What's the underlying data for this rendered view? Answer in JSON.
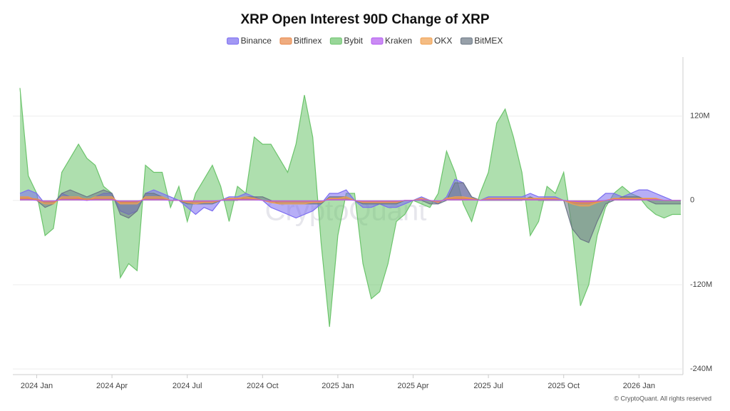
{
  "chart_data": {
    "type": "area",
    "title": "XRP Open Interest 90D Change of XRP",
    "watermark": "CryptoQuant",
    "credit": "© CryptoQuant. All rights reserved",
    "categories": [
      null,
      null,
      "2024 Jan",
      null,
      null,
      null,
      null,
      null,
      null,
      null,
      null,
      "2024 Apr",
      null,
      null,
      null,
      null,
      null,
      null,
      null,
      null,
      "2024 Jul",
      null,
      null,
      null,
      null,
      null,
      null,
      null,
      null,
      "2024 Oct",
      null,
      null,
      null,
      null,
      null,
      null,
      null,
      null,
      "2025 Jan",
      null,
      null,
      null,
      null,
      null,
      null,
      null,
      null,
      "2025 Apr",
      null,
      null,
      null,
      null,
      null,
      null,
      null,
      null,
      "2025 Jul",
      null,
      null,
      null,
      null,
      null,
      null,
      null,
      null,
      "2025 Oct",
      null,
      null,
      null,
      null,
      null,
      null,
      null,
      null,
      "2026 Jan",
      null,
      null,
      null,
      null,
      null
    ],
    "ylim": [
      -248000000.0,
      204000000.0
    ],
    "yticks": [
      {
        "value": 120000000.0,
        "label": "120M"
      },
      0,
      {
        "value": -120000000.0,
        "label": "-120M"
      },
      {
        "value": -240000000.0,
        "label": "-240M"
      }
    ],
    "grid": true,
    "legend": "top",
    "series": [
      {
        "name": "Bybit",
        "color": "#6cc46c",
        "values": [
          160000000.0,
          35000000.0,
          10000000.0,
          -50000000.0,
          -40000000.0,
          40000000.0,
          60000000.0,
          80000000.0,
          60000000.0,
          50000000.0,
          20000000.0,
          10000000.0,
          -110000000.0,
          -90000000.0,
          -100000000.0,
          50000000.0,
          40000000.0,
          40000000.0,
          -10000000.0,
          20000000.0,
          -30000000.0,
          10000000.0,
          30000000.0,
          50000000.0,
          20000000.0,
          -30000000.0,
          20000000.0,
          10000000.0,
          90000000.0,
          80000000.0,
          80000000.0,
          60000000.0,
          40000000.0,
          80000000.0,
          150000000.0,
          90000000.0,
          -60000000.0,
          -180000000.0,
          -50000000.0,
          10000000.0,
          10000000.0,
          -90000000.0,
          -140000000.0,
          -130000000.0,
          -90000000.0,
          -30000000.0,
          -20000000.0,
          0,
          -5000000.0,
          -10000000.0,
          10000000.0,
          70000000.0,
          40000000.0,
          -5000000.0,
          -30000000.0,
          10000000.0,
          40000000.0,
          110000000.0,
          130000000.0,
          90000000.0,
          40000000.0,
          -50000000.0,
          -30000000.0,
          20000000.0,
          10000000.0,
          40000000.0,
          -40000000.0,
          -150000000.0,
          -120000000.0,
          -50000000.0,
          -10000000.0,
          10000000.0,
          20000000.0,
          10000000.0,
          5000000.0,
          -10000000.0,
          -20000000.0,
          -25000000.0,
          -20000000.0,
          -20000000.0
        ]
      },
      {
        "name": "Binance",
        "color": "#7b6cf0",
        "values": [
          10000000.0,
          15000000.0,
          10000000.0,
          -5000000.0,
          -5000000.0,
          10000000.0,
          5000000.0,
          5000000.0,
          0,
          5000000.0,
          10000000.0,
          10000000.0,
          -15000000.0,
          -20000000.0,
          -15000000.0,
          10000000.0,
          15000000.0,
          10000000.0,
          5000000.0,
          0,
          -10000000.0,
          -20000000.0,
          -10000000.0,
          -15000000.0,
          0,
          5000000.0,
          5000000.0,
          10000000.0,
          5000000.0,
          0,
          -10000000.0,
          -15000000.0,
          -20000000.0,
          -25000000.0,
          -20000000.0,
          -15000000.0,
          -5000000.0,
          10000000.0,
          10000000.0,
          15000000.0,
          0,
          -10000000.0,
          -10000000.0,
          -5000000.0,
          -10000000.0,
          -10000000.0,
          -5000000.0,
          0,
          5000000.0,
          0,
          -5000000.0,
          5000000.0,
          30000000.0,
          25000000.0,
          5000000.0,
          0,
          5000000.0,
          5000000.0,
          5000000.0,
          5000000.0,
          5000000.0,
          10000000.0,
          5000000.0,
          5000000.0,
          5000000.0,
          0,
          -5000000.0,
          -5000000.0,
          -5000000.0,
          0,
          10000000.0,
          10000000.0,
          5000000.0,
          10000000.0,
          15000000.0,
          15000000.0,
          10000000.0,
          5000000.0,
          0,
          0
        ]
      },
      {
        "name": "BitMEX",
        "color": "#6b7785",
        "values": [
          5000000.0,
          5000000.0,
          0,
          -10000000.0,
          -5000000.0,
          10000000.0,
          15000000.0,
          10000000.0,
          5000000.0,
          10000000.0,
          15000000.0,
          10000000.0,
          -20000000.0,
          -25000000.0,
          -15000000.0,
          10000000.0,
          10000000.0,
          5000000.0,
          0,
          0,
          -5000000.0,
          -5000000.0,
          -5000000.0,
          -5000000.0,
          0,
          0,
          0,
          5000000.0,
          5000000.0,
          5000000.0,
          0,
          -5000000.0,
          -5000000.0,
          -5000000.0,
          -5000000.0,
          -5000000.0,
          -5000000.0,
          5000000.0,
          5000000.0,
          5000000.0,
          0,
          -5000000.0,
          -5000000.0,
          -5000000.0,
          -5000000.0,
          -5000000.0,
          0,
          0,
          0,
          -5000000.0,
          -5000000.0,
          0,
          25000000.0,
          25000000.0,
          5000000.0,
          0,
          0,
          0,
          0,
          0,
          0,
          5000000.0,
          0,
          0,
          0,
          0,
          -40000000.0,
          -55000000.0,
          -60000000.0,
          -30000000.0,
          -5000000.0,
          0,
          5000000.0,
          5000000.0,
          5000000.0,
          0,
          -5000000.0,
          -5000000.0,
          -5000000.0,
          -5000000.0
        ]
      },
      {
        "name": "OKX",
        "color": "#f0a050",
        "values": [
          5000000.0,
          5000000.0,
          0,
          -5000000.0,
          -5000000.0,
          5000000.0,
          5000000.0,
          5000000.0,
          0,
          5000000.0,
          5000000.0,
          5000000.0,
          -5000000.0,
          -5000000.0,
          -5000000.0,
          5000000.0,
          5000000.0,
          5000000.0,
          0,
          0,
          -3000000.0,
          -5000000.0,
          -3000000.0,
          -3000000.0,
          0,
          3000000.0,
          3000000.0,
          5000000.0,
          3000000.0,
          0,
          -3000000.0,
          -5000000.0,
          -5000000.0,
          -5000000.0,
          -5000000.0,
          -3000000.0,
          -3000000.0,
          3000000.0,
          3000000.0,
          5000000.0,
          0,
          -3000000.0,
          -3000000.0,
          -3000000.0,
          -3000000.0,
          -3000000.0,
          0,
          0,
          3000000.0,
          0,
          -3000000.0,
          3000000.0,
          5000000.0,
          5000000.0,
          3000000.0,
          0,
          3000000.0,
          3000000.0,
          3000000.0,
          3000000.0,
          3000000.0,
          3000000.0,
          3000000.0,
          3000000.0,
          3000000.0,
          0,
          -5000000.0,
          -8000000.0,
          -8000000.0,
          -3000000.0,
          0,
          3000000.0,
          3000000.0,
          3000000.0,
          3000000.0,
          3000000.0,
          3000000.0,
          0,
          0,
          0
        ]
      },
      {
        "name": "Bitfinex",
        "color": "#e8894a",
        "values": [
          3000000.0,
          3000000.0,
          2000000.0,
          -2000000.0,
          -2000000.0,
          2000000.0,
          2000000.0,
          3000000.0,
          2000000.0,
          2000000.0,
          2000000.0,
          2000000.0,
          -3000000.0,
          -3000000.0,
          -2000000.0,
          2000000.0,
          2000000.0,
          2000000.0,
          0,
          0,
          -2000000.0,
          -2000000.0,
          -2000000.0,
          -2000000.0,
          0,
          2000000.0,
          2000000.0,
          2000000.0,
          2000000.0,
          0,
          -2000000.0,
          -2000000.0,
          -2000000.0,
          -2000000.0,
          -2000000.0,
          -2000000.0,
          -2000000.0,
          2000000.0,
          2000000.0,
          2000000.0,
          0,
          -2000000.0,
          -2000000.0,
          -2000000.0,
          -2000000.0,
          -2000000.0,
          0,
          0,
          2000000.0,
          0,
          -2000000.0,
          2000000.0,
          3000000.0,
          3000000.0,
          2000000.0,
          0,
          2000000.0,
          2000000.0,
          2000000.0,
          2000000.0,
          2000000.0,
          2000000.0,
          2000000.0,
          2000000.0,
          2000000.0,
          0,
          -3000000.0,
          -4000000.0,
          -4000000.0,
          -2000000.0,
          0,
          2000000.0,
          2000000.0,
          2000000.0,
          2000000.0,
          2000000.0,
          2000000.0,
          0,
          0,
          0
        ]
      },
      {
        "name": "Kraken",
        "color": "#b35af0",
        "values": [
          1000000.0,
          1000000.0,
          0,
          -1000000.0,
          -1000000.0,
          1000000.0,
          1000000.0,
          1000000.0,
          0,
          1000000.0,
          1000000.0,
          1000000.0,
          -1000000.0,
          -1000000.0,
          -1000000.0,
          1000000.0,
          1000000.0,
          1000000.0,
          0,
          0,
          -1000000.0,
          -1000000.0,
          -1000000.0,
          -1000000.0,
          0,
          1000000.0,
          1000000.0,
          1000000.0,
          1000000.0,
          0,
          -1000000.0,
          -1000000.0,
          -1000000.0,
          -1000000.0,
          -1000000.0,
          -1000000.0,
          -1000000.0,
          1000000.0,
          1000000.0,
          1000000.0,
          0,
          -1000000.0,
          -1000000.0,
          -1000000.0,
          -1000000.0,
          -1000000.0,
          0,
          0,
          1000000.0,
          0,
          -1000000.0,
          1000000.0,
          1000000.0,
          1000000.0,
          1000000.0,
          0,
          1000000.0,
          1000000.0,
          1000000.0,
          1000000.0,
          1000000.0,
          1000000.0,
          1000000.0,
          1000000.0,
          1000000.0,
          0,
          -1000000.0,
          -2000000.0,
          -2000000.0,
          -1000000.0,
          0,
          1000000.0,
          1000000.0,
          1000000.0,
          1000000.0,
          1000000.0,
          1000000.0,
          0,
          0,
          0
        ]
      }
    ]
  }
}
